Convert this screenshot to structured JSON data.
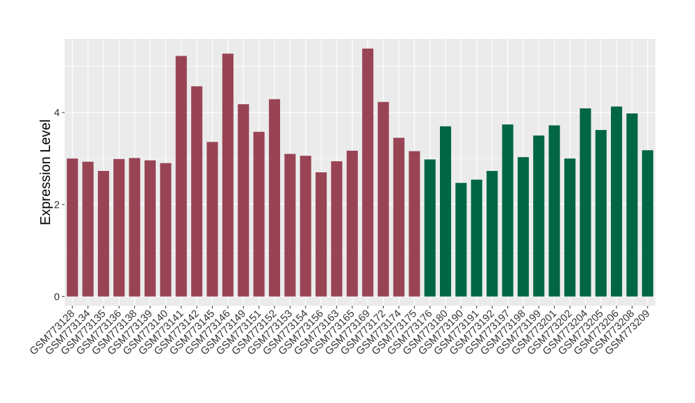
{
  "chart_data": {
    "type": "bar",
    "title": "",
    "xlabel": "",
    "ylabel": "Expression Level",
    "ylim": [
      -0.2,
      5.6
    ],
    "yticks": [
      0,
      2,
      4
    ],
    "grid": true,
    "background_color": "#EBEBEB",
    "colors": {
      "group1": "#994455",
      "group2": "#006644"
    },
    "categories": [
      "GSM773128",
      "GSM773134",
      "GSM773135",
      "GSM773136",
      "GSM773138",
      "GSM773139",
      "GSM773140",
      "GSM773141",
      "GSM773142",
      "GSM773145",
      "GSM773146",
      "GSM773149",
      "GSM773151",
      "GSM773152",
      "GSM773153",
      "GSM773154",
      "GSM773156",
      "GSM773163",
      "GSM773165",
      "GSM773169",
      "GSM773172",
      "GSM773174",
      "GSM773175",
      "GSM773176",
      "GSM773180",
      "GSM773190",
      "GSM773191",
      "GSM773192",
      "GSM773197",
      "GSM773198",
      "GSM773199",
      "GSM773201",
      "GSM773202",
      "GSM773204",
      "GSM773205",
      "GSM773206",
      "GSM773208",
      "GSM773209"
    ],
    "values": [
      3.0,
      2.93,
      2.73,
      2.99,
      3.01,
      2.96,
      2.9,
      5.23,
      4.57,
      3.36,
      5.28,
      4.18,
      3.58,
      4.29,
      3.1,
      3.06,
      2.7,
      2.94,
      3.17,
      5.39,
      4.23,
      3.45,
      3.16,
      2.98,
      3.7,
      2.47,
      2.54,
      2.73,
      3.74,
      3.03,
      3.5,
      3.72,
      3.0,
      4.09,
      3.62,
      4.13,
      3.98,
      3.18
    ],
    "groups": [
      "group1",
      "group1",
      "group1",
      "group1",
      "group1",
      "group1",
      "group1",
      "group1",
      "group1",
      "group1",
      "group1",
      "group1",
      "group1",
      "group1",
      "group1",
      "group1",
      "group1",
      "group1",
      "group1",
      "group1",
      "group1",
      "group1",
      "group1",
      "group2",
      "group2",
      "group2",
      "group2",
      "group2",
      "group2",
      "group2",
      "group2",
      "group2",
      "group2",
      "group2",
      "group2",
      "group2",
      "group2",
      "group2"
    ]
  }
}
